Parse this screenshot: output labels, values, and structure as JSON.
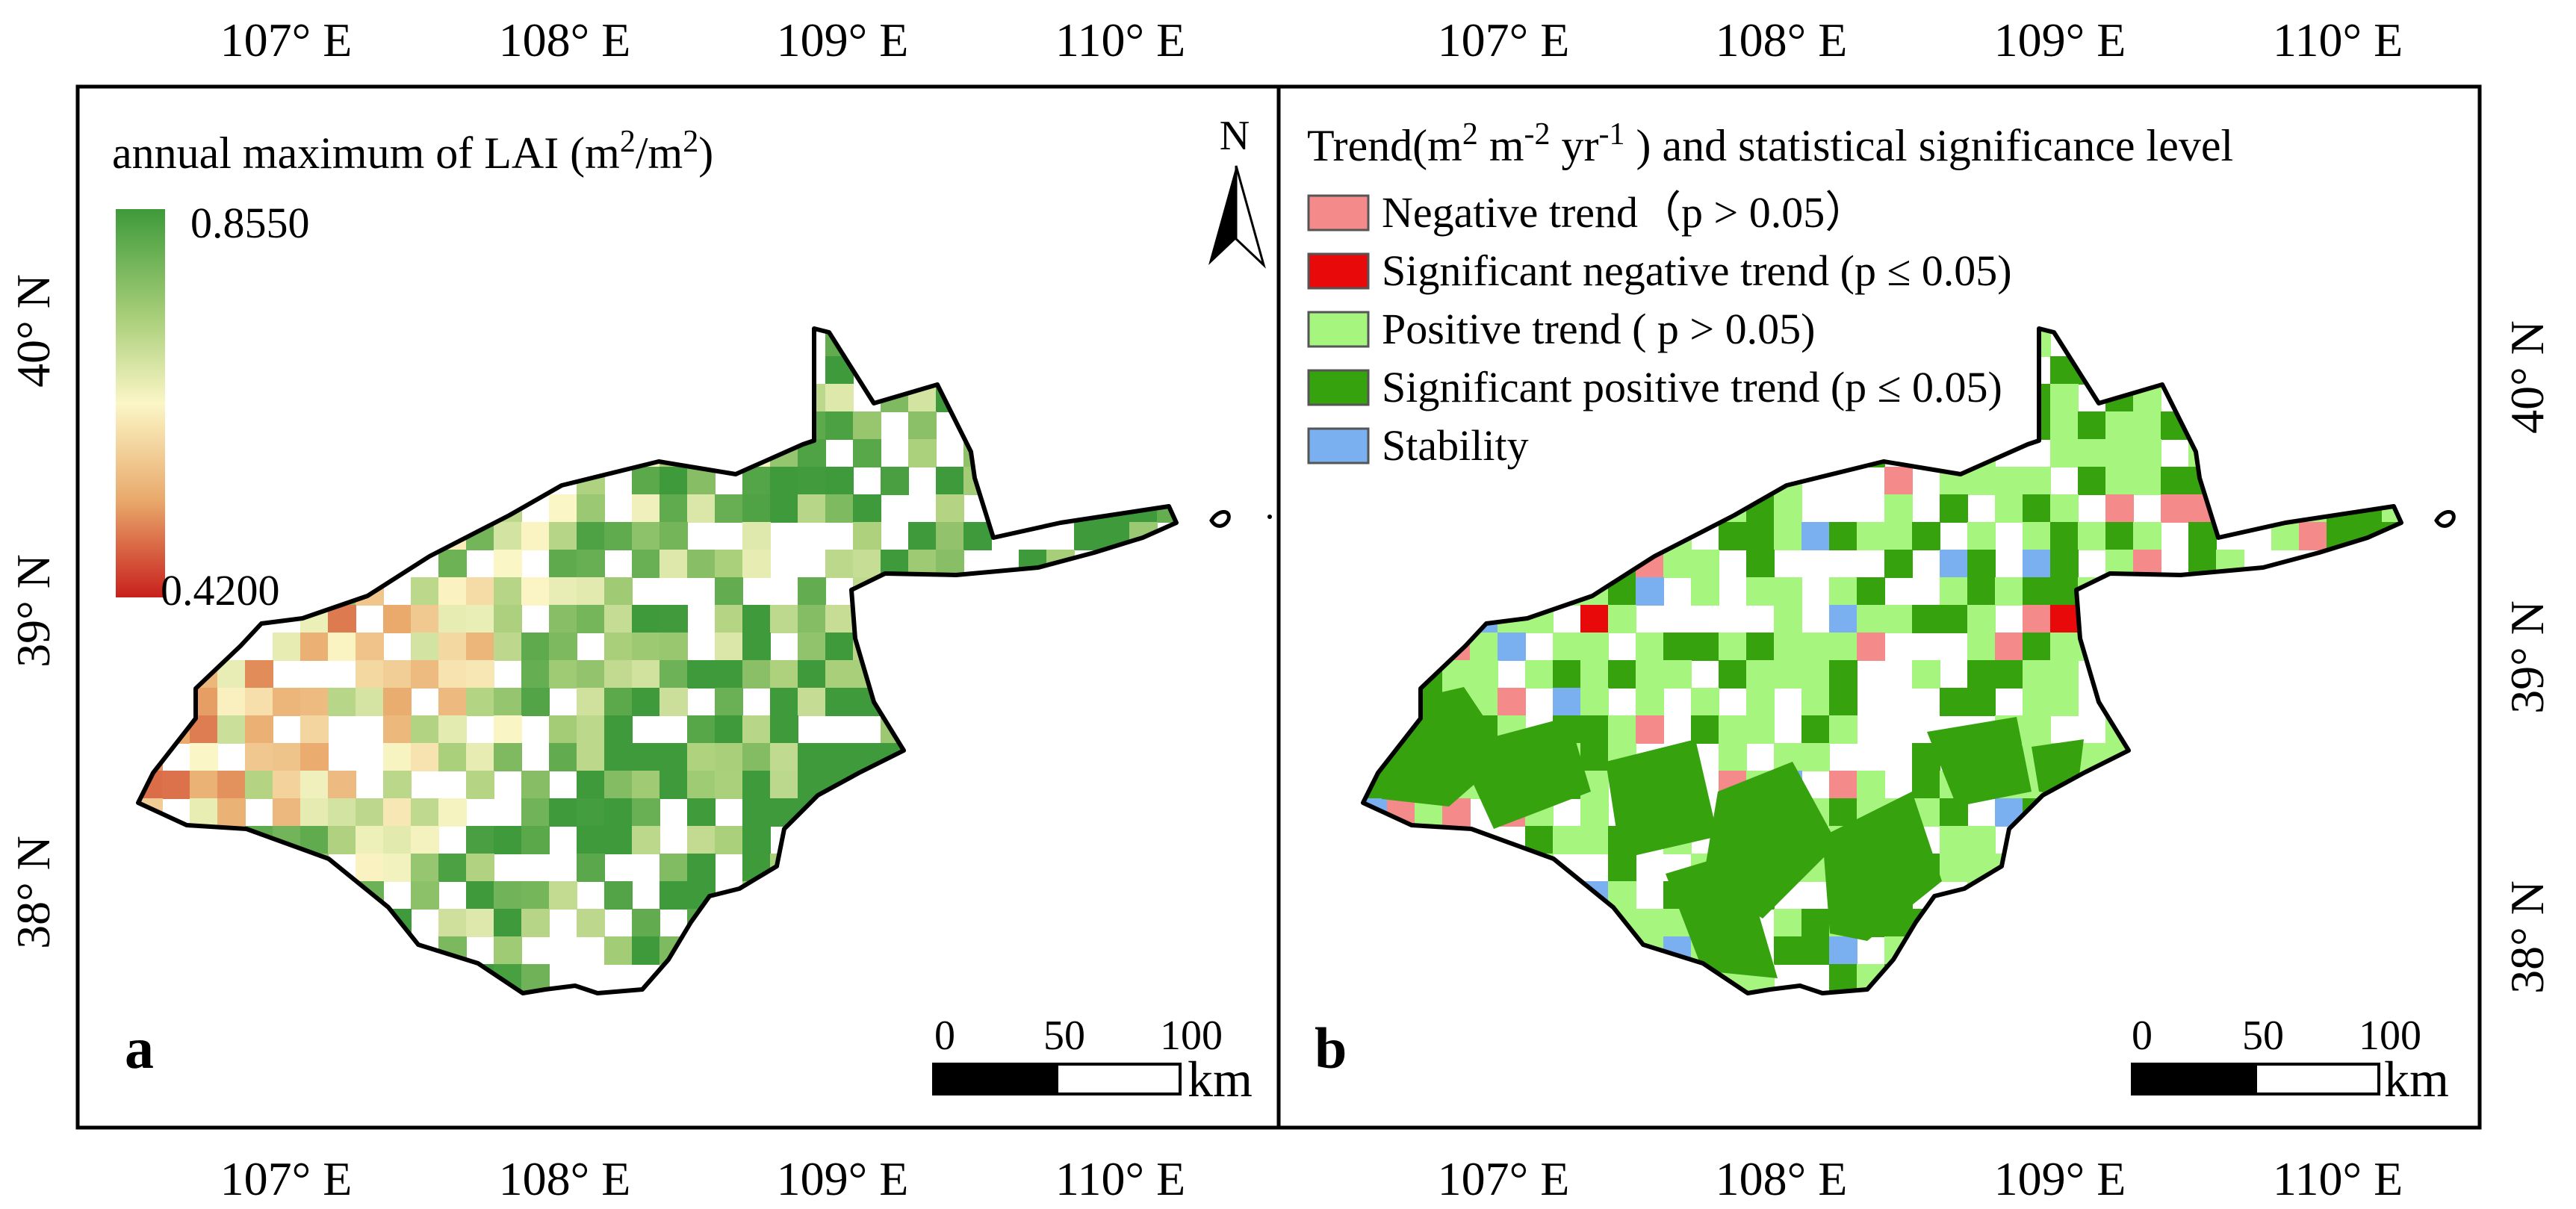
{
  "axes": {
    "lon_labels": [
      "107° E",
      "108° E",
      "109° E",
      "110° E"
    ],
    "lat_labels": [
      "40° N",
      "39° N",
      "38° N"
    ]
  },
  "panel_a": {
    "label": "a",
    "title_main": "annual maximum of LAI (m",
    "title_sup1": "2",
    "title_mid": "/m",
    "title_sup2": "2",
    "title_end": ")",
    "legend_max": "0.8550",
    "legend_min": "0.4200",
    "colors": {
      "low": "#c8201c",
      "mid_low": "#e9a96b",
      "mid": "#fbf6c6",
      "mid_high": "#a9cf7a",
      "high": "#3e9a3a"
    },
    "north_letter": "N",
    "scale": {
      "ticks": [
        "0",
        "50",
        "100"
      ],
      "unit": "km"
    }
  },
  "panel_b": {
    "label": "b",
    "title_a": "Trend(m",
    "title_sup1": "2",
    "title_b": " m",
    "title_sup2": "-2",
    "title_c": " yr",
    "title_sup3": "-1",
    "title_d": " ) and statistical significance level",
    "legend": [
      {
        "key": "neg",
        "color": "#f48a8a",
        "text": "Negative trend（p > 0.05）"
      },
      {
        "key": "sig_neg",
        "color": "#e8090b",
        "text": "Significant negative trend (p ≤ 0.05)"
      },
      {
        "key": "pos",
        "color": "#a6f57f",
        "text": "Positive trend ( p > 0.05)"
      },
      {
        "key": "sig_pos",
        "color": "#36a30e",
        "text": "Significant positive trend (p ≤ 0.05)"
      },
      {
        "key": "stab",
        "color": "#7ab0f0",
        "text": "Stability"
      }
    ],
    "scale": {
      "ticks": [
        "0",
        "50",
        "100"
      ],
      "unit": "km"
    }
  }
}
